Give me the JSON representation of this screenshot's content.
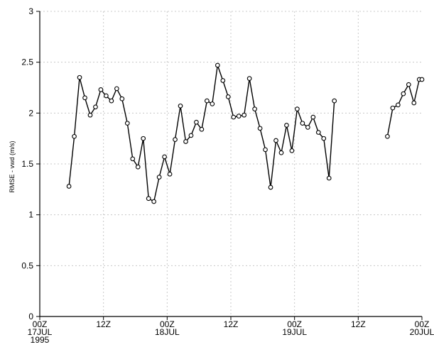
{
  "chart_data": {
    "type": "line",
    "title": "",
    "xlabel": "",
    "ylabel": "RMSE - vwd (m/s)",
    "ylim": [
      0,
      3
    ],
    "yticks": [
      0,
      0.5,
      1,
      1.5,
      2,
      2.5,
      3
    ],
    "ytick_labels": [
      "0",
      "0.5",
      "1",
      "1.5",
      "2",
      "2.5",
      "3"
    ],
    "x_unit": "hours since 17JUL1995 00Z",
    "xlim": [
      0,
      72
    ],
    "xticks": [
      {
        "x": 0,
        "lines": [
          "00Z",
          "17JUL",
          "1995"
        ]
      },
      {
        "x": 12,
        "lines": [
          "12Z"
        ]
      },
      {
        "x": 24,
        "lines": [
          "00Z",
          "18JUL"
        ]
      },
      {
        "x": 36,
        "lines": [
          "12Z"
        ]
      },
      {
        "x": 48,
        "lines": [
          "00Z",
          "19JUL"
        ]
      },
      {
        "x": 60,
        "lines": [
          "12Z"
        ]
      },
      {
        "x": 72,
        "lines": [
          "00Z",
          "20JUL"
        ]
      }
    ],
    "grid": true,
    "series": [
      {
        "name": "",
        "x": [
          5.5,
          6.5,
          7.5,
          8.5,
          9.5,
          10.5,
          11.5,
          12.5,
          13.5,
          14.5,
          15.5,
          16.5,
          17.5,
          18.5,
          19.5,
          20.5,
          21.5,
          22.5,
          23.5,
          24.5,
          25.5,
          26.5,
          27.5,
          28.5,
          29.5,
          30.5,
          31.5,
          32.5,
          33.5,
          34.5,
          35.5,
          36.5,
          37.5,
          38.5,
          39.5,
          40.5,
          41.5,
          42.5,
          43.5,
          44.5,
          45.5,
          46.5,
          47.5,
          48.5,
          49.5,
          50.5,
          51.5,
          52.5,
          53.5,
          54.5,
          55.5,
          56.5,
          57.5,
          58.5,
          59.5,
          60.5,
          61.5,
          62.5,
          63.5,
          64.5,
          65.5,
          66.5,
          67.5,
          68.5,
          69.5,
          70.5,
          71.5,
          72.0
        ],
        "y": [
          1.28,
          1.77,
          2.35,
          2.15,
          1.98,
          2.06,
          2.23,
          2.17,
          2.12,
          2.24,
          2.14,
          1.9,
          1.55,
          1.47,
          1.75,
          1.16,
          1.13,
          1.37,
          1.57,
          1.4,
          1.74,
          2.07,
          1.72,
          1.78,
          1.91,
          1.84,
          2.12,
          2.09,
          2.47,
          2.32,
          2.16,
          1.96,
          1.97,
          1.98,
          2.34,
          2.04,
          1.85,
          1.64,
          1.27,
          1.73,
          1.61,
          1.88,
          1.63,
          2.04,
          1.9,
          1.86,
          1.96,
          1.81,
          1.75,
          1.36,
          2.12,
          null,
          null,
          null,
          null,
          null,
          null,
          null,
          null,
          null,
          1.77,
          2.05,
          2.08,
          2.19,
          2.28,
          2.1,
          2.33,
          2.33
        ]
      }
    ]
  }
}
